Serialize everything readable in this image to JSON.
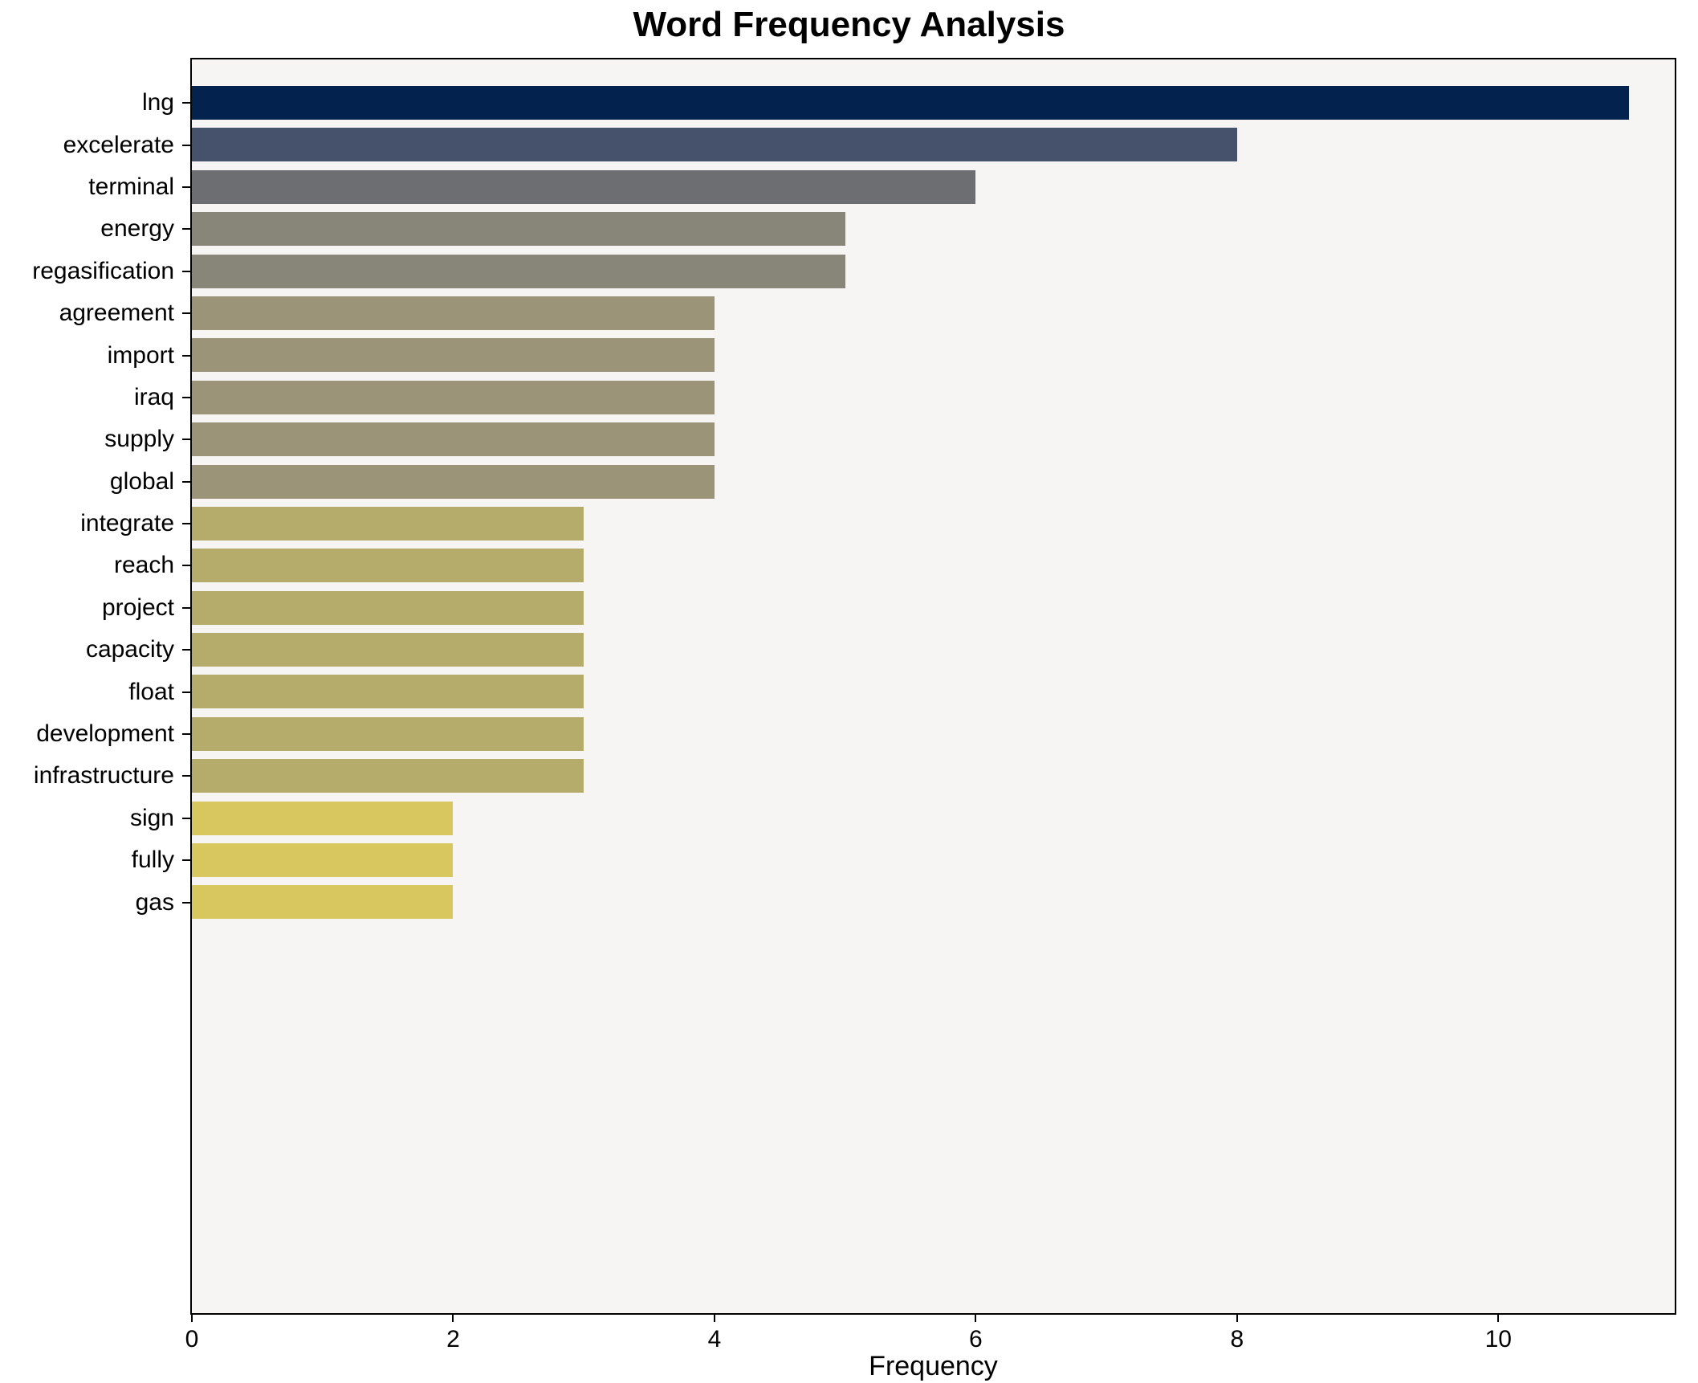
{
  "chart_data": {
    "type": "bar",
    "orientation": "horizontal",
    "title": "Word Frequency Analysis",
    "xlabel": "Frequency",
    "ylabel": "",
    "xlim": [
      0,
      11.35
    ],
    "xticks": [
      0,
      2,
      4,
      6,
      8,
      10
    ],
    "grid": false,
    "legend": "none",
    "plot_background": "#f6f5f3",
    "categories": [
      "lng",
      "excelerate",
      "terminal",
      "energy",
      "regasification",
      "agreement",
      "import",
      "iraq",
      "supply",
      "global",
      "integrate",
      "reach",
      "project",
      "capacity",
      "float",
      "development",
      "infrastructure",
      "sign",
      "fully",
      "gas"
    ],
    "values": [
      11,
      8,
      6,
      5,
      5,
      4,
      4,
      4,
      4,
      4,
      3,
      3,
      3,
      3,
      3,
      3,
      3,
      2,
      2,
      2
    ],
    "bar_colors": [
      "#03234e",
      "#46526b",
      "#6c6e72",
      "#888678",
      "#888678",
      "#9b9478",
      "#9b9478",
      "#9b9478",
      "#9b9478",
      "#9b9478",
      "#b5ab6b",
      "#b5ab6b",
      "#b5ab6b",
      "#b5ab6b",
      "#b5ab6b",
      "#b5ab6b",
      "#b5ab6b",
      "#d7c75e",
      "#d7c75e",
      "#d7c75e"
    ]
  }
}
